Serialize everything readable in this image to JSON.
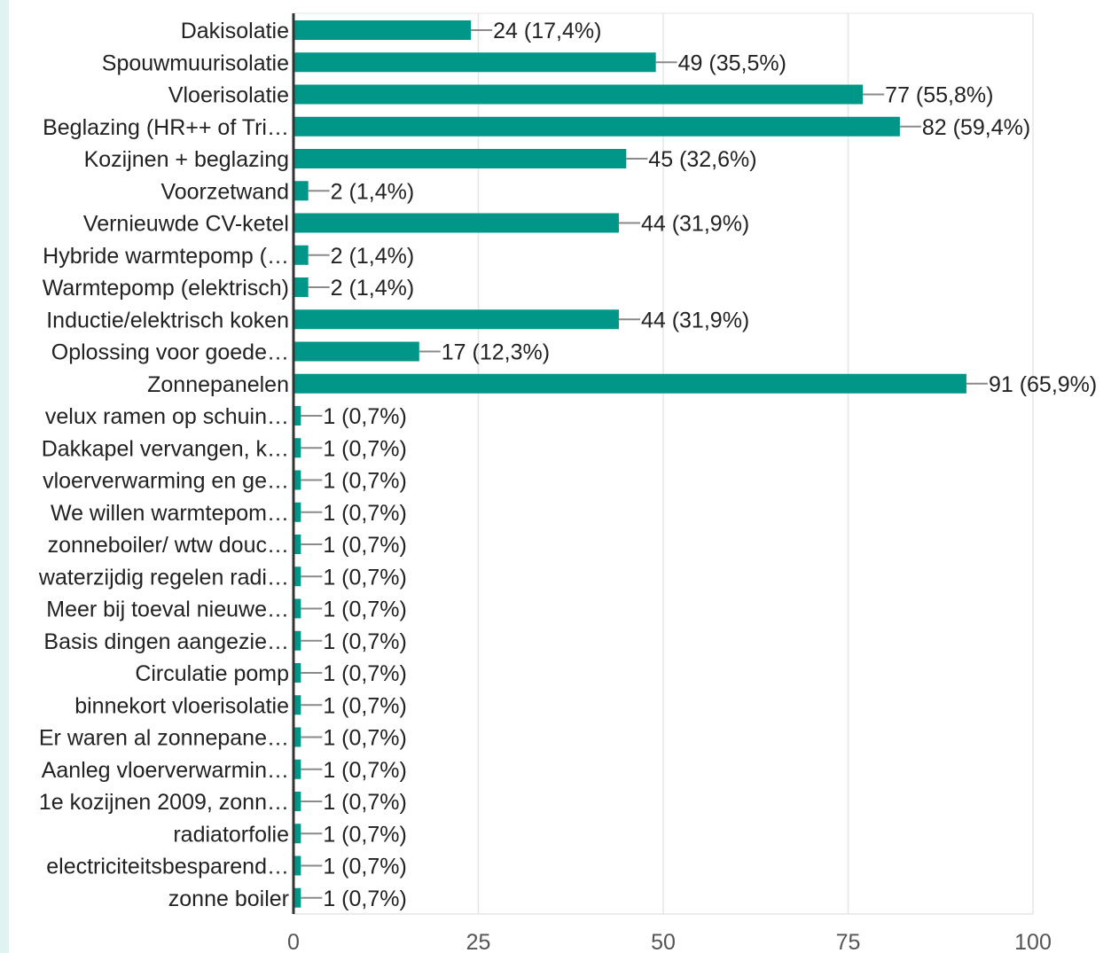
{
  "colors": {
    "bar": "#009688",
    "grid": "#e5e5e5",
    "axis": "#333333",
    "text": "#222222",
    "connector": "#8a8a8a",
    "left_strip": "#e0f2f1"
  },
  "chart_data": {
    "type": "bar",
    "orientation": "horizontal",
    "title": "",
    "xlabel": "",
    "ylabel": "",
    "xlim": [
      0,
      100
    ],
    "x_ticks": [
      "0",
      "25",
      "50",
      "75",
      "100"
    ],
    "grid": true,
    "categories": [
      "Dakisolatie",
      "Spouwmuurisolatie",
      "Vloerisolatie",
      "Beglazing (HR++ of Tri…",
      "Kozijnen + beglazing",
      "Voorzetwand",
      "Vernieuwde CV-ketel",
      "Hybride warmtepomp (…",
      "Warmtepomp (elektrisch)",
      "Inductie/elektrisch koken",
      "Oplossing voor goede…",
      "Zonnepanelen",
      "velux ramen op schuin…",
      "Dakkapel vervangen, k…",
      "vloerverwarming en ge…",
      "We willen warmtepom…",
      "zonneboiler/ wtw douc…",
      "waterzijdig regelen radi…",
      "Meer bij toeval nieuwe…",
      "Basis dingen aangezie…",
      "Circulatie pomp",
      "binnekort vloerisolatie",
      "Er waren al zonnepane…",
      "Aanleg vloerverwarmin…",
      "1e kozijnen 2009, zonn…",
      "radiatorfolie",
      "electriciteitsbesparend…",
      "zonne boiler"
    ],
    "values": [
      24,
      49,
      77,
      82,
      45,
      2,
      44,
      2,
      2,
      44,
      17,
      91,
      1,
      1,
      1,
      1,
      1,
      1,
      1,
      1,
      1,
      1,
      1,
      1,
      1,
      1,
      1,
      1
    ],
    "data_labels": [
      "24 (17,4%)",
      "49 (35,5%)",
      "77 (55,8%)",
      "82 (59,4%)",
      "45 (32,6%)",
      "2 (1,4%)",
      "44 (31,9%)",
      "2 (1,4%)",
      "2 (1,4%)",
      "44 (31,9%)",
      "17 (12,3%)",
      "91 (65,9%)",
      "1 (0,7%)",
      "1 (0,7%)",
      "1 (0,7%)",
      "1 (0,7%)",
      "1 (0,7%)",
      "1 (0,7%)",
      "1 (0,7%)",
      "1 (0,7%)",
      "1 (0,7%)",
      "1 (0,7%)",
      "1 (0,7%)",
      "1 (0,7%)",
      "1 (0,7%)",
      "1 (0,7%)",
      "1 (0,7%)",
      "1 (0,7%)"
    ]
  }
}
